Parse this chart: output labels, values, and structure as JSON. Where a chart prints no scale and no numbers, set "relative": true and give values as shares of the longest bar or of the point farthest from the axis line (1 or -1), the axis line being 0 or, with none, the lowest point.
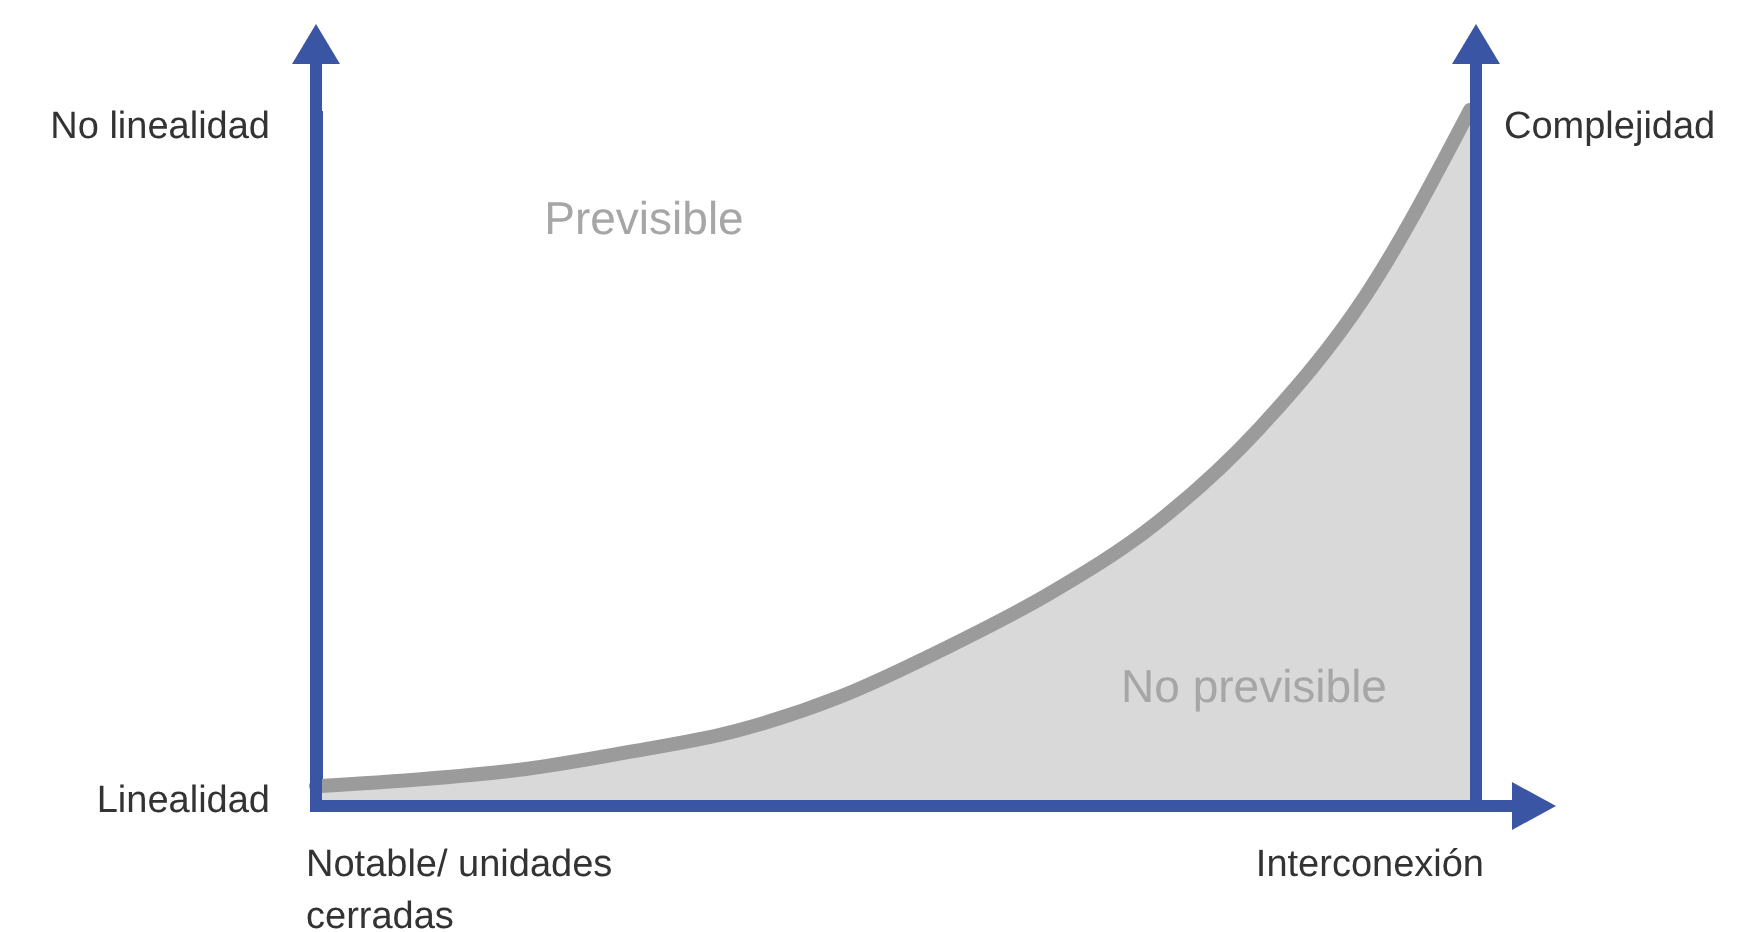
{
  "chart_data": {
    "type": "area",
    "relative": true,
    "categories": [
      null,
      null,
      null,
      null,
      null,
      null,
      null,
      null,
      null,
      null,
      null,
      null
    ],
    "series": [
      {
        "color": "#d9d9d9",
        "values": [
          0.02,
          0.03,
          0.045,
          0.07,
          0.1,
          0.15,
          0.22,
          0.3,
          0.4,
          0.54,
          0.73,
          1.0
        ]
      }
    ],
    "annotations": [
      "No linealidad",
      "Linealidad",
      "Complejidad",
      "Notable/ unidades cerradas",
      "Interconexión",
      "Previsible",
      "No previsible"
    ]
  }
}
